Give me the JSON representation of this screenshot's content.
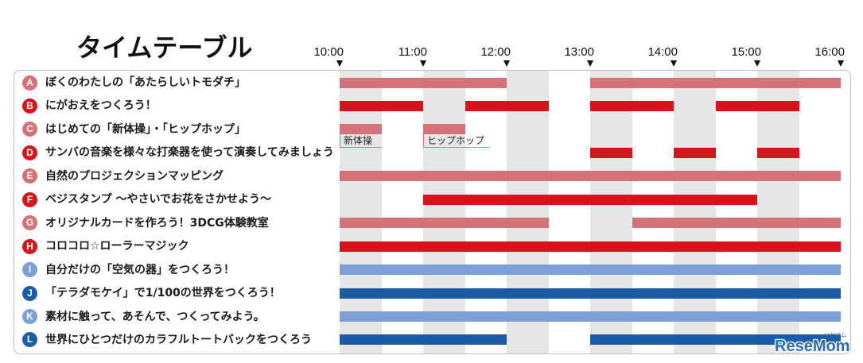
{
  "chart_data": {
    "type": "bar",
    "orientation": "horizontal",
    "title": "タイムテーブル",
    "x_ticks": [
      "10:00",
      "11:00",
      "12:00",
      "13:00",
      "14:00",
      "15:00",
      "16:00"
    ],
    "xlim": [
      "10:00",
      "16:00"
    ],
    "grid": false,
    "shaded_intervals": [
      [
        "10:00",
        "10:30"
      ],
      [
        "11:00",
        "11:30"
      ],
      [
        "12:00",
        "12:30"
      ],
      [
        "13:00",
        "13:30"
      ],
      [
        "14:00",
        "14:30"
      ],
      [
        "15:00",
        "15:30"
      ]
    ],
    "colors": {
      "band": "#e6e6e6",
      "frame": "#bfbfbf",
      "text": "#1a1a1a",
      "badge_text": "#ffffff"
    },
    "rows": [
      {
        "id": "A",
        "label": "ぼくのわたしの「あたらしいトモダチ」",
        "color": "#d4727a",
        "sessions": [
          {
            "start": "10:00",
            "end": "12:00"
          },
          {
            "start": "13:00",
            "end": "16:00"
          }
        ]
      },
      {
        "id": "B",
        "label": "にがおえをつくろう！",
        "color": "#d7141c",
        "sessions": [
          {
            "start": "10:00",
            "end": "11:00"
          },
          {
            "start": "11:30",
            "end": "12:30"
          },
          {
            "start": "13:00",
            "end": "14:00"
          },
          {
            "start": "14:30",
            "end": "15:30"
          }
        ]
      },
      {
        "id": "C",
        "label": "はじめての「新体操」・「ヒップホップ」",
        "color": "#d4727a",
        "sessions": [
          {
            "start": "10:00",
            "end": "10:30",
            "name": "新体操"
          },
          {
            "start": "11:00",
            "end": "11:30",
            "name": "ヒップホップ"
          }
        ]
      },
      {
        "id": "D",
        "label": "サンバの音楽を様々な打楽器を使って演奏してみましょう",
        "color": "#d7141c",
        "sessions": [
          {
            "start": "13:00",
            "end": "13:30"
          },
          {
            "start": "14:00",
            "end": "14:30"
          },
          {
            "start": "15:00",
            "end": "15:30"
          }
        ]
      },
      {
        "id": "E",
        "label": "自然のプロジェクションマッピング",
        "color": "#d4727a",
        "sessions": [
          {
            "start": "10:00",
            "end": "16:00"
          }
        ]
      },
      {
        "id": "F",
        "label": "ベジスタンプ ～やさいでお花をさかせよう～",
        "color": "#d7141c",
        "sessions": [
          {
            "start": "11:00",
            "end": "15:00"
          }
        ]
      },
      {
        "id": "G",
        "label": "オリジナルカードを作ろう！3DCG体験教室",
        "color": "#d4727a",
        "sessions": [
          {
            "start": "10:00",
            "end": "12:30"
          },
          {
            "start": "13:30",
            "end": "16:00"
          }
        ]
      },
      {
        "id": "H",
        "label": "コロコロ☆ローラーマジック",
        "color": "#d7141c",
        "sessions": [
          {
            "start": "10:00",
            "end": "16:00"
          }
        ]
      },
      {
        "id": "I",
        "label": "自分だけの「空気の器」をつくろう！",
        "color": "#7c9fd5",
        "sessions": [
          {
            "start": "10:00",
            "end": "16:00"
          }
        ]
      },
      {
        "id": "J",
        "label": "「テラダモケイ」で1/100の世界をつくろう！",
        "color": "#1b5ca4",
        "sessions": [
          {
            "start": "10:00",
            "end": "16:00"
          }
        ]
      },
      {
        "id": "K",
        "label": "素材に触って、あそんで、つくってみよう。",
        "color": "#7c9fd5",
        "sessions": [
          {
            "start": "10:00",
            "end": "16:00"
          }
        ]
      },
      {
        "id": "L",
        "label": "世界にひとつだけのカラフルトートバックをつくろう",
        "color": "#1b5ca4",
        "sessions": [
          {
            "start": "10:00",
            "end": "12:00"
          },
          {
            "start": "13:00",
            "end": "16:00"
          }
        ]
      }
    ]
  },
  "watermark": {
    "text": "ReseMom",
    "kana": "リセマム",
    "color": "#2f6cb0"
  }
}
